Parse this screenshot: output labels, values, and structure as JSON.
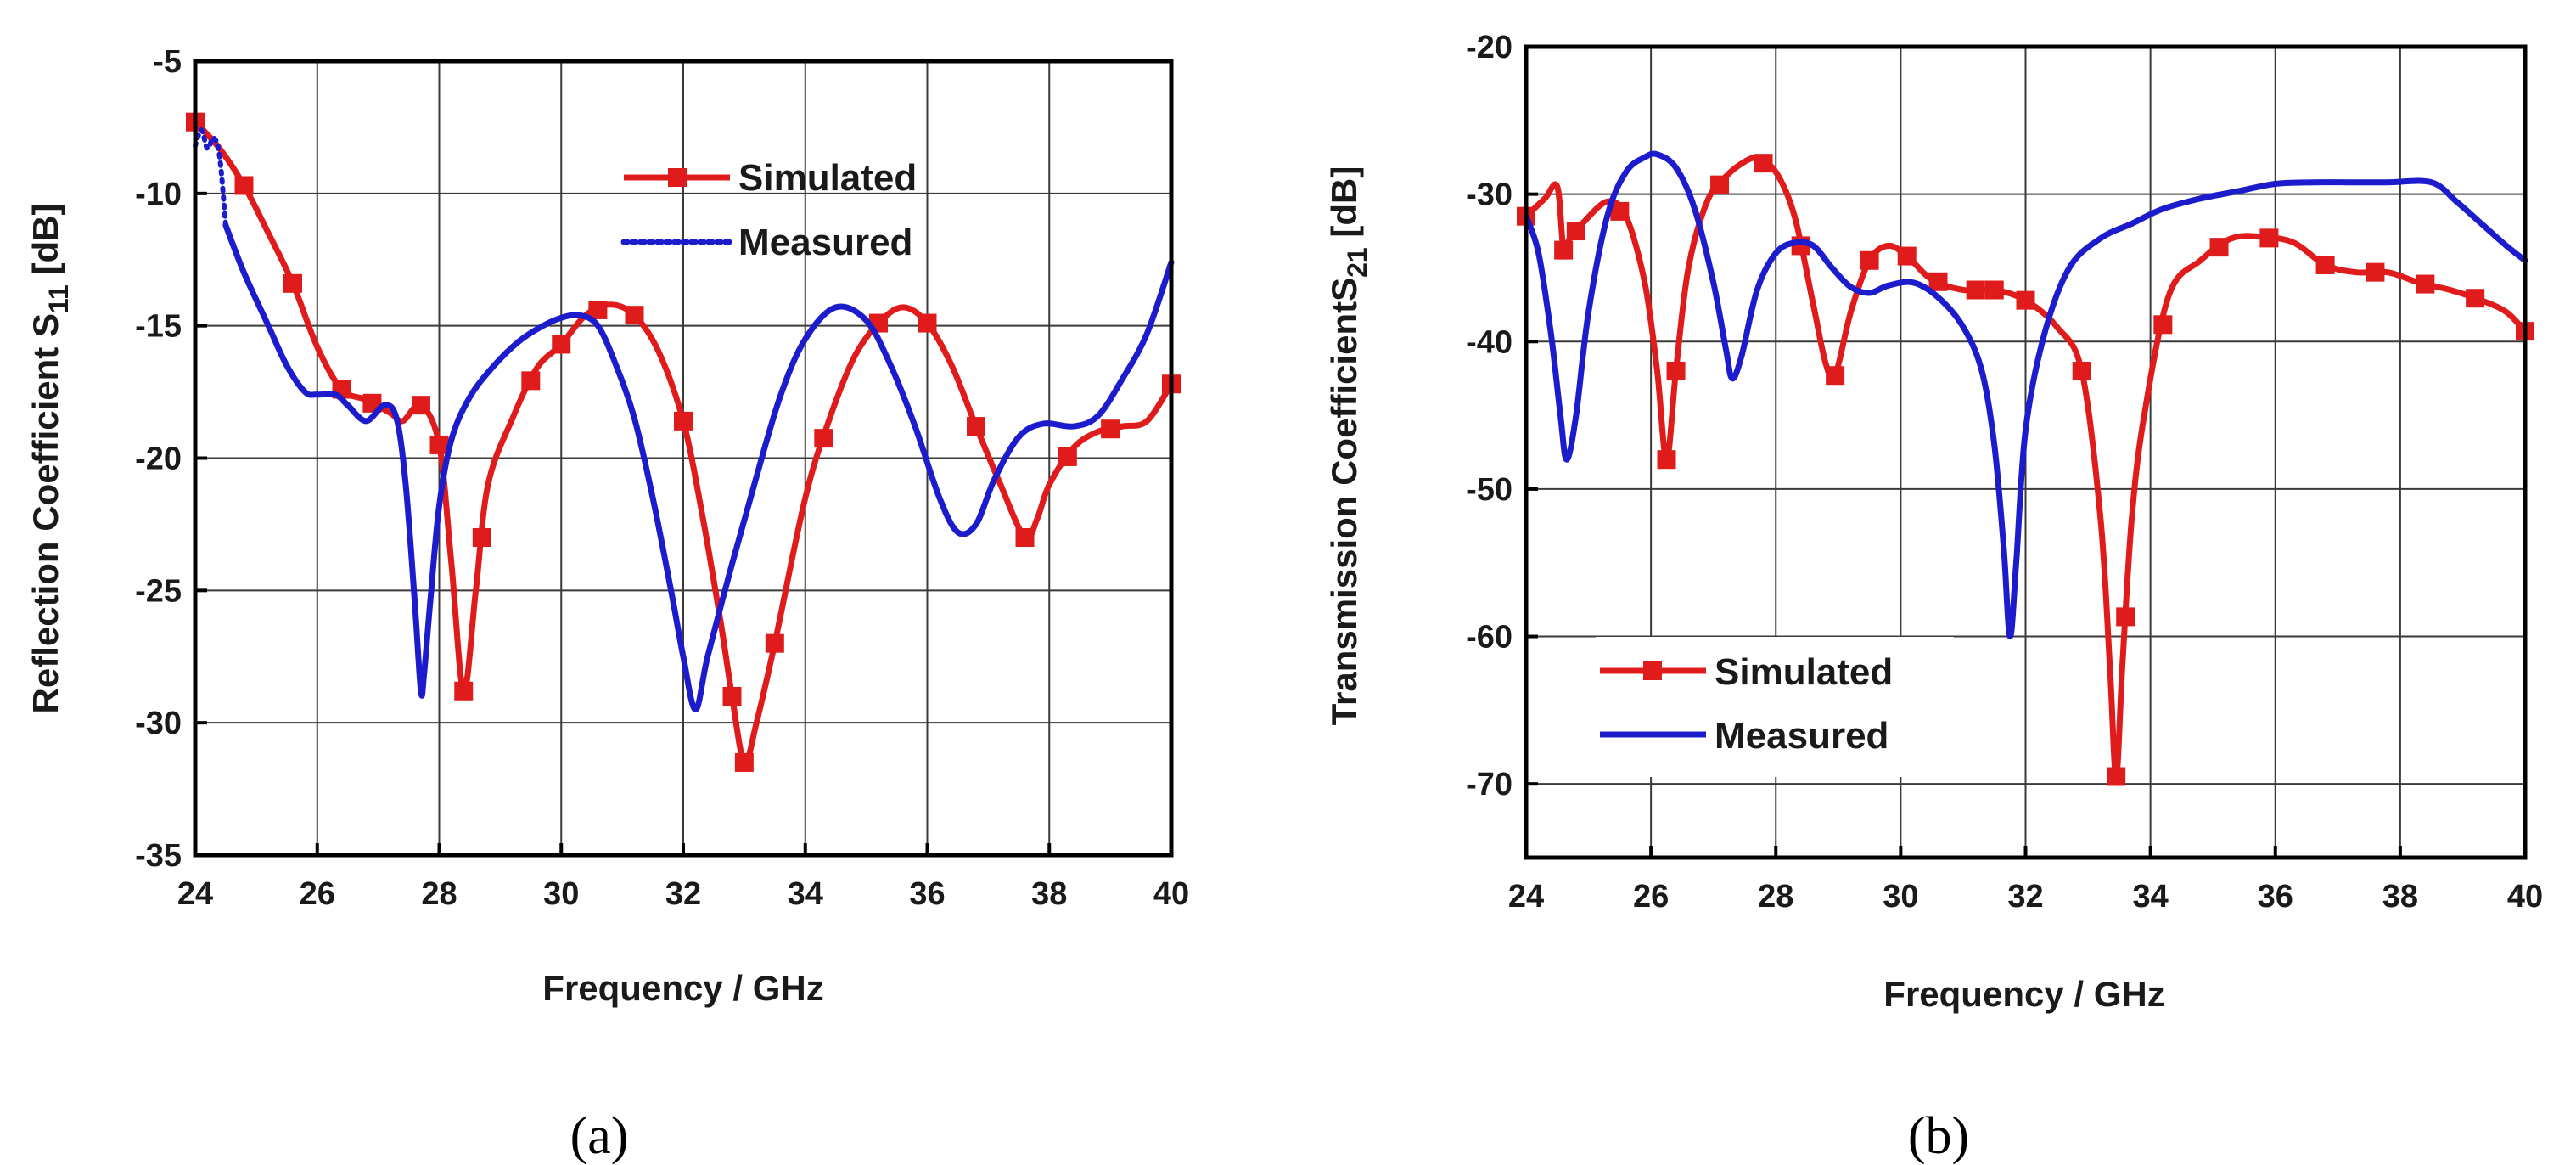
{
  "chart_data": [
    {
      "type": "line",
      "panel_label": "(a)",
      "xlabel": "Frequency / GHz",
      "ylabel": {
        "main": "Reflection Coefficient S",
        "sub": "11",
        "unit": " [dB]"
      },
      "xlim": [
        24,
        40
      ],
      "ylim": [
        -35,
        -5
      ],
      "xticks": [
        "24",
        "26",
        "28",
        "30",
        "32",
        "34",
        "36",
        "38",
        "40"
      ],
      "yticks": [
        "-35",
        "-30",
        "-25",
        "-20",
        "-15",
        "-10",
        "-5"
      ],
      "grid": true,
      "legend_position": "top-center",
      "series": [
        {
          "name": "Simulated",
          "color": "#e01b1b",
          "style": "solid-square-markers",
          "x": [
            24.0,
            24.4,
            24.8,
            25.2,
            25.6,
            26.0,
            26.4,
            26.8,
            27.2,
            27.4,
            27.7,
            28.0,
            28.2,
            28.4,
            28.6,
            28.8,
            29.2,
            29.6,
            30.0,
            30.4,
            30.8,
            31.2,
            31.6,
            32.0,
            32.3,
            32.6,
            32.8,
            33.0,
            33.2,
            33.5,
            34.0,
            34.4,
            34.8,
            35.2,
            35.6,
            36.0,
            36.4,
            36.8,
            37.2,
            37.6,
            37.8,
            38.0,
            38.4,
            38.8,
            39.2,
            39.6,
            40.0
          ],
          "y": [
            -7.3,
            -8.3,
            -9.7,
            -11.5,
            -13.4,
            -15.8,
            -17.4,
            -17.8,
            -18.3,
            -18.6,
            -18.0,
            -19.5,
            -24.0,
            -28.8,
            -25.0,
            -21.0,
            -18.5,
            -16.6,
            -15.7,
            -14.6,
            -14.2,
            -14.6,
            -16.0,
            -18.6,
            -22.0,
            -26.0,
            -29.0,
            -31.5,
            -30.0,
            -27.0,
            -21.5,
            -18.5,
            -16.2,
            -14.9,
            -14.3,
            -14.9,
            -16.5,
            -18.8,
            -21.0,
            -23.0,
            -22.3,
            -21.0,
            -19.6,
            -19.0,
            -18.8,
            -18.6,
            -17.2
          ],
          "marker_x": [
            24.0,
            24.8,
            25.6,
            26.4,
            26.9,
            27.7,
            28.0,
            28.4,
            28.7,
            29.5,
            30.0,
            30.6,
            31.2,
            32.0,
            32.8,
            33.0,
            33.5,
            34.3,
            35.2,
            36.0,
            36.8,
            37.6,
            38.3,
            39.0,
            40.0
          ]
        },
        {
          "name": "Measured",
          "color": "#1c1ccc",
          "style": "solid-dotted-start",
          "x": [
            24.5,
            24.8,
            25.2,
            25.5,
            25.8,
            26.0,
            26.3,
            26.5,
            26.8,
            27.1,
            27.3,
            27.45,
            27.6,
            27.7,
            27.75,
            27.85,
            28.0,
            28.2,
            28.5,
            28.9,
            29.3,
            29.7,
            30.0,
            30.3,
            30.6,
            30.9,
            31.2,
            31.5,
            31.8,
            32.0,
            32.2,
            32.4,
            32.8,
            33.2,
            33.6,
            34.0,
            34.5,
            35.0,
            35.4,
            35.8,
            36.2,
            36.5,
            36.8,
            37.1,
            37.5,
            37.9,
            38.4,
            38.8,
            39.2,
            39.6,
            40.0
          ],
          "y": [
            -11.2,
            -13.0,
            -15.0,
            -16.5,
            -17.5,
            -17.6,
            -17.6,
            -18.0,
            -18.6,
            -18.0,
            -18.5,
            -21.0,
            -25.5,
            -28.8,
            -28.2,
            -25.5,
            -21.8,
            -19.3,
            -17.7,
            -16.5,
            -15.6,
            -15.0,
            -14.7,
            -14.6,
            -15.0,
            -16.5,
            -18.5,
            -21.5,
            -25.0,
            -27.5,
            -29.5,
            -27.5,
            -24.0,
            -20.7,
            -17.6,
            -15.5,
            -14.3,
            -14.8,
            -16.5,
            -18.8,
            -21.5,
            -22.8,
            -22.5,
            -20.8,
            -19.2,
            -18.7,
            -18.8,
            -18.4,
            -17.0,
            -15.3,
            -12.6
          ]
        },
        {
          "name": "Measured (start)",
          "color": "#1c1ccc",
          "style": "dotted",
          "x": [
            24.0,
            24.1,
            24.2,
            24.3,
            24.4,
            24.5
          ],
          "y": [
            -8.2,
            -7.6,
            -8.3,
            -7.9,
            -8.6,
            -11.2
          ]
        }
      ],
      "legend": [
        "Simulated",
        "Measured"
      ]
    },
    {
      "type": "line",
      "panel_label": "(b)",
      "xlabel": "Frequency / GHz",
      "ylabel": {
        "main": "Transmission CoefficientS",
        "sub": "21",
        "unit": " [dB]"
      },
      "xlim": [
        24,
        40
      ],
      "ylim": [
        -75,
        -20
      ],
      "xticks": [
        "24",
        "26",
        "28",
        "30",
        "32",
        "34",
        "36",
        "38",
        "40"
      ],
      "yticks": [
        "-70",
        "-60",
        "-50",
        "-40",
        "-30",
        "-20"
      ],
      "ytick_values": [
        -70,
        -60,
        -50,
        -40,
        -30,
        -20
      ],
      "grid": true,
      "legend_position": "bottom-left",
      "series": [
        {
          "name": "Simulated",
          "color": "#e01b1b",
          "style": "solid-square-markers",
          "x": [
            24.0,
            24.3,
            24.5,
            24.6,
            24.7,
            24.9,
            25.3,
            25.6,
            25.9,
            26.1,
            26.25,
            26.4,
            26.6,
            26.9,
            27.2,
            27.5,
            27.7,
            28.0,
            28.3,
            28.6,
            28.8,
            28.95,
            29.2,
            29.5,
            29.8,
            30.1,
            30.5,
            31.0,
            31.5,
            32.0,
            32.5,
            32.9,
            33.2,
            33.35,
            33.45,
            33.55,
            33.7,
            33.9,
            34.3,
            34.8,
            35.3,
            35.8,
            36.3,
            36.8,
            37.3,
            37.8,
            38.3,
            38.8,
            39.3,
            39.7,
            40.0
          ],
          "y": [
            -31.5,
            -30.3,
            -29.5,
            -33.8,
            -33.0,
            -32.0,
            -30.5,
            -31.5,
            -36.0,
            -42.0,
            -48.0,
            -42.0,
            -35.0,
            -30.5,
            -28.8,
            -27.8,
            -27.6,
            -28.5,
            -31.5,
            -37.5,
            -41.5,
            -42.3,
            -38.0,
            -34.5,
            -33.5,
            -34.2,
            -35.8,
            -36.5,
            -36.5,
            -37.2,
            -39.0,
            -42.0,
            -52.0,
            -62.0,
            -69.5,
            -62.0,
            -52.0,
            -45.0,
            -36.8,
            -34.5,
            -33.0,
            -32.9,
            -33.3,
            -34.8,
            -35.3,
            -35.3,
            -36.0,
            -36.5,
            -37.2,
            -38.0,
            -39.3
          ],
          "marker_x": [
            24.0,
            24.6,
            24.8,
            25.5,
            26.25,
            26.4,
            27.1,
            27.8,
            28.4,
            28.95,
            29.5,
            30.1,
            30.6,
            31.2,
            31.5,
            32.0,
            32.9,
            33.45,
            33.6,
            34.2,
            35.1,
            35.9,
            36.8,
            37.6,
            38.4,
            39.2,
            40.0
          ]
        },
        {
          "name": "Measured",
          "color": "#1c1ccc",
          "style": "solid",
          "x": [
            24.0,
            24.2,
            24.4,
            24.55,
            24.65,
            24.8,
            25.0,
            25.3,
            25.6,
            25.9,
            26.1,
            26.4,
            26.7,
            27.0,
            27.2,
            27.3,
            27.45,
            27.7,
            28.0,
            28.3,
            28.6,
            28.9,
            29.2,
            29.5,
            29.8,
            30.2,
            30.6,
            31.0,
            31.3,
            31.5,
            31.65,
            31.75,
            31.85,
            32.0,
            32.3,
            32.7,
            33.2,
            33.7,
            34.2,
            34.8,
            35.4,
            36.0,
            36.6,
            37.2,
            37.8,
            38.5,
            38.9,
            39.3,
            39.7,
            40.0
          ],
          "y": [
            -31.5,
            -34.0,
            -39.5,
            -45.0,
            -48.0,
            -45.0,
            -38.0,
            -31.5,
            -28.5,
            -27.5,
            -27.3,
            -28.2,
            -31.0,
            -36.0,
            -40.5,
            -42.5,
            -41.0,
            -36.5,
            -34.0,
            -33.3,
            -33.5,
            -35.0,
            -36.3,
            -36.7,
            -36.2,
            -36.0,
            -37.0,
            -39.0,
            -42.0,
            -47.0,
            -54.0,
            -60.0,
            -55.0,
            -46.0,
            -39.5,
            -35.0,
            -33.0,
            -32.0,
            -31.0,
            -30.3,
            -29.8,
            -29.3,
            -29.2,
            -29.2,
            -29.2,
            -29.2,
            -30.5,
            -32.0,
            -33.5,
            -34.5
          ]
        }
      ],
      "legend": [
        "Simulated",
        "Measured"
      ]
    }
  ]
}
